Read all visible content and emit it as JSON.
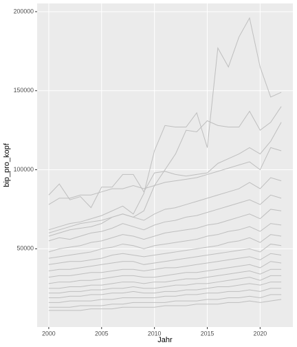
{
  "chart_data": {
    "type": "line",
    "x_label": "Jahr",
    "y_label": "bip_pro_kopf",
    "x": [
      2000,
      2001,
      2002,
      2003,
      2004,
      2005,
      2006,
      2007,
      2008,
      2009,
      2010,
      2011,
      2012,
      2013,
      2014,
      2015,
      2016,
      2017,
      2018,
      2019,
      2020,
      2021,
      2022
    ],
    "xlim": [
      1998.9,
      2023.1
    ],
    "xticks": [
      2000,
      2005,
      2010,
      2015,
      2020
    ],
    "ylim": [
      500,
      205200
    ],
    "yticks": [
      50000,
      100000,
      150000,
      200000
    ],
    "grid": true,
    "series": [
      {
        "color": "#bebebe",
        "values": [
          62000,
          64000,
          66000,
          67000,
          69000,
          71000,
          74000,
          77000,
          72000,
          85000,
          112000,
          128000,
          127000,
          127000,
          136000,
          114000,
          177000,
          165000,
          184000,
          196000,
          165000,
          146000,
          149000
        ]
      },
      {
        "color": "#bebebe",
        "values": [
          58000,
          60000,
          62000,
          63000,
          64000,
          66000,
          70000,
          72000,
          70000,
          74000,
          90000,
          100000,
          110000,
          125000,
          124000,
          131000,
          128000,
          127000,
          127000,
          137000,
          125000,
          130000,
          140000
        ]
      },
      {
        "color": "#bebebe",
        "values": [
          84000,
          91000,
          81000,
          83000,
          76000,
          89000,
          89000,
          97000,
          97000,
          86000,
          98000,
          99000,
          97000,
          96000,
          97000,
          98000,
          104000,
          107000,
          110000,
          114000,
          110000,
          118000,
          130000
        ]
      },
      {
        "color": "#bebebe",
        "values": [
          78000,
          82000,
          82000,
          84000,
          84000,
          86000,
          88000,
          88000,
          90000,
          88000,
          90000,
          92000,
          93000,
          94000,
          95000,
          97000,
          99000,
          101000,
          103000,
          105000,
          100000,
          114000,
          112000
        ]
      },
      {
        "color": "#bebebe",
        "values": [
          60000,
          62000,
          64000,
          66000,
          67000,
          68000,
          70000,
          72000,
          70000,
          68000,
          72000,
          75000,
          76000,
          78000,
          80000,
          82000,
          84000,
          86000,
          88000,
          92000,
          88000,
          95000,
          93000
        ]
      },
      {
        "color": "#bebebe",
        "values": [
          55000,
          57000,
          56000,
          58000,
          60000,
          61000,
          63000,
          66000,
          64000,
          62000,
          65000,
          67000,
          68000,
          70000,
          71000,
          73000,
          75000,
          77000,
          79000,
          81000,
          78000,
          84000,
          82000
        ]
      },
      {
        "color": "#bebebe",
        "values": [
          48000,
          50000,
          51000,
          52000,
          54000,
          55000,
          57000,
          59000,
          58000,
          56000,
          58000,
          60000,
          61000,
          62000,
          63000,
          65000,
          66000,
          68000,
          70000,
          72000,
          69000,
          75000,
          74000
        ]
      },
      {
        "color": "#bebebe",
        "values": [
          44000,
          45000,
          46000,
          47000,
          48000,
          50000,
          51000,
          53000,
          52000,
          50000,
          52000,
          53000,
          54000,
          55000,
          56000,
          58000,
          59000,
          61000,
          62000,
          64000,
          61000,
          66000,
          65000
        ]
      },
      {
        "color": "#bebebe",
        "values": [
          40000,
          41000,
          42000,
          42000,
          43000,
          44000,
          46000,
          47000,
          46000,
          45000,
          46000,
          47000,
          48000,
          49000,
          50000,
          51000,
          52000,
          54000,
          55000,
          57000,
          54000,
          59000,
          58000
        ]
      },
      {
        "color": "#bebebe",
        "values": [
          36000,
          37000,
          37000,
          38000,
          39000,
          40000,
          41000,
          42000,
          42000,
          40000,
          41000,
          42000,
          43000,
          44000,
          45000,
          46000,
          47000,
          48000,
          49000,
          50000,
          48000,
          53000,
          52000
        ]
      },
      {
        "color": "#bebebe",
        "values": [
          32000,
          33000,
          33000,
          34000,
          35000,
          35000,
          36000,
          37000,
          37000,
          36000,
          37000,
          38000,
          38000,
          39000,
          40000,
          41000,
          42000,
          43000,
          44000,
          45000,
          43000,
          47000,
          46000
        ]
      },
      {
        "color": "#bebebe",
        "values": [
          28000,
          29000,
          29000,
          30000,
          30000,
          31000,
          32000,
          33000,
          33000,
          32000,
          32000,
          33000,
          34000,
          35000,
          35000,
          36000,
          37000,
          38000,
          39000,
          40000,
          38000,
          42000,
          41000
        ]
      },
      {
        "color": "#bebebe",
        "values": [
          25000,
          25000,
          26000,
          26000,
          27000,
          27000,
          28000,
          29000,
          29000,
          28000,
          29000,
          29000,
          30000,
          31000,
          31000,
          32000,
          33000,
          34000,
          35000,
          36000,
          34000,
          37000,
          37000
        ]
      },
      {
        "color": "#bebebe",
        "values": [
          22000,
          22000,
          23000,
          23000,
          24000,
          24000,
          25000,
          25000,
          26000,
          25000,
          25000,
          26000,
          27000,
          27000,
          28000,
          28000,
          29000,
          30000,
          31000,
          32000,
          30000,
          33000,
          33000
        ]
      },
      {
        "color": "#bebebe",
        "values": [
          19000,
          19000,
          20000,
          20000,
          21000,
          21000,
          22000,
          22000,
          23000,
          22000,
          22000,
          23000,
          23000,
          24000,
          24000,
          25000,
          26000,
          26000,
          27000,
          28000,
          27000,
          29000,
          29000
        ]
      },
      {
        "color": "#bebebe",
        "values": [
          16000,
          16000,
          17000,
          17000,
          17000,
          18000,
          18000,
          19000,
          19000,
          19000,
          19000,
          20000,
          20000,
          21000,
          21000,
          22000,
          22000,
          23000,
          23000,
          24000,
          23000,
          25000,
          25000
        ]
      },
      {
        "color": "#bebebe",
        "values": [
          13000,
          13000,
          13000,
          14000,
          14000,
          14000,
          15000,
          15000,
          16000,
          16000,
          16000,
          16000,
          17000,
          17000,
          17000,
          18000,
          18000,
          19000,
          19000,
          20000,
          19000,
          21000,
          21000
        ]
      },
      {
        "color": "#bebebe",
        "values": [
          11000,
          11000,
          11000,
          11000,
          12000,
          12000,
          12000,
          13000,
          13000,
          13000,
          13000,
          14000,
          14000,
          14000,
          15000,
          15000,
          15000,
          16000,
          16000,
          17000,
          16000,
          17000,
          18000
        ]
      }
    ]
  }
}
